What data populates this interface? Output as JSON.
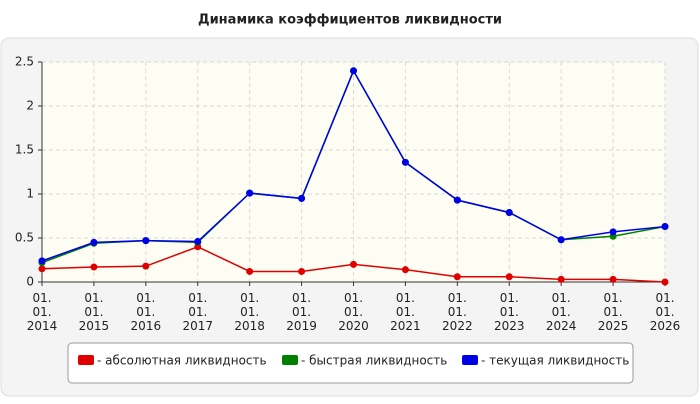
{
  "chart_data": {
    "type": "line",
    "title": "Динамика коэффициентов ликвидности",
    "categories": [
      "01. 01. 2014",
      "01. 01. 2015",
      "01. 01. 2016",
      "01. 01. 2017",
      "01. 01. 2018",
      "01. 01. 2019",
      "01. 01. 2020",
      "01. 01. 2021",
      "01. 01. 2022",
      "01. 01. 2023",
      "01. 01. 2024",
      "01. 01. 2025",
      "01. 01. 2026"
    ],
    "series": [
      {
        "name": "- абсолютная ликвидность",
        "color": "#e00000",
        "values": [
          0.15,
          0.17,
          0.18,
          0.4,
          0.12,
          0.12,
          0.2,
          0.14,
          0.06,
          0.06,
          0.03,
          0.03,
          0.0
        ]
      },
      {
        "name": "- быстрая ликвидность",
        "color": "#008000",
        "values": [
          0.22,
          0.44,
          0.47,
          0.45,
          1.01,
          0.95,
          2.4,
          1.36,
          0.93,
          0.79,
          0.48,
          0.52,
          0.63
        ]
      },
      {
        "name": "- текущая ликвидность",
        "color": "#0000e8",
        "values": [
          0.24,
          0.45,
          0.47,
          0.46,
          1.01,
          0.95,
          2.4,
          1.36,
          0.93,
          0.79,
          0.48,
          0.57,
          0.63
        ]
      }
    ],
    "ylim": [
      0,
      2.5
    ],
    "yticks": [
      0,
      0.5,
      1,
      1.5,
      2,
      2.5
    ],
    "grid": true
  }
}
